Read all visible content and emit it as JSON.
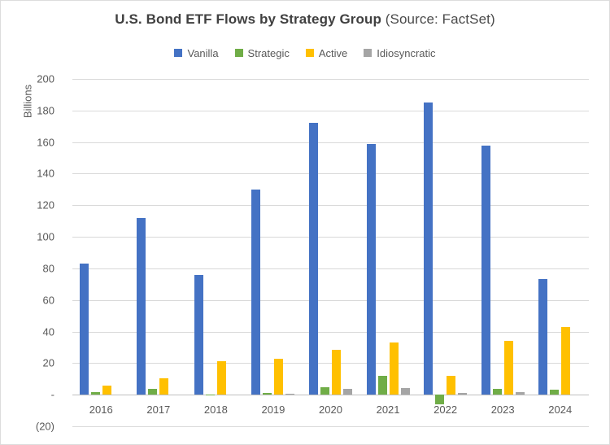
{
  "title": {
    "main": "U.S. Bond ETF Flows by Strategy Group",
    "suffix": " (Source: FactSet)"
  },
  "y_axis": {
    "label": "Billions",
    "ticks": [
      {
        "label": "200",
        "value": 200
      },
      {
        "label": "180",
        "value": 180
      },
      {
        "label": "160",
        "value": 160
      },
      {
        "label": "140",
        "value": 140
      },
      {
        "label": "120",
        "value": 120
      },
      {
        "label": "100",
        "value": 100
      },
      {
        "label": "80",
        "value": 80
      },
      {
        "label": "60",
        "value": 60
      },
      {
        "label": "40",
        "value": 40
      },
      {
        "label": "20",
        "value": 20
      },
      {
        "label": "-",
        "value": 0
      },
      {
        "label": "(20)",
        "value": -20
      }
    ]
  },
  "colors": {
    "vanilla": "#4472C4",
    "strategic": "#70AD47",
    "active": "#FFC000",
    "idiosyncratic": "#A5A5A5",
    "gridline": "#D9D9D9",
    "zero_axis": "#BFBFBF",
    "title_text": "#404040",
    "axis_text": "#595959"
  },
  "chart_data": {
    "type": "bar",
    "title": "U.S. Bond ETF Flows by Strategy Group (Source: FactSet)",
    "xlabel": "",
    "ylabel": "Billions",
    "ylim": [
      -20,
      200
    ],
    "ytick_step": 20,
    "grid": true,
    "legend_position": "top-center",
    "categories": [
      "2016",
      "2017",
      "2018",
      "2019",
      "2020",
      "2021",
      "2022",
      "2023",
      "2024"
    ],
    "series": [
      {
        "name": "Vanilla",
        "color": "#4472C4",
        "values": [
          83,
          112,
          76,
          130,
          172,
          159,
          185,
          158,
          73
        ]
      },
      {
        "name": "Strategic",
        "color": "#70AD47",
        "values": [
          1.5,
          3.5,
          -0.5,
          1,
          4.5,
          12,
          -6,
          3.5,
          3
        ]
      },
      {
        "name": "Active",
        "color": "#FFC000",
        "values": [
          6,
          10.5,
          21,
          23,
          28.5,
          33,
          12,
          34,
          43
        ]
      },
      {
        "name": "Idiosyncratic",
        "color": "#A5A5A5",
        "values": [
          0,
          0,
          0,
          0.5,
          3.5,
          4,
          1,
          1.5,
          0
        ]
      }
    ]
  }
}
